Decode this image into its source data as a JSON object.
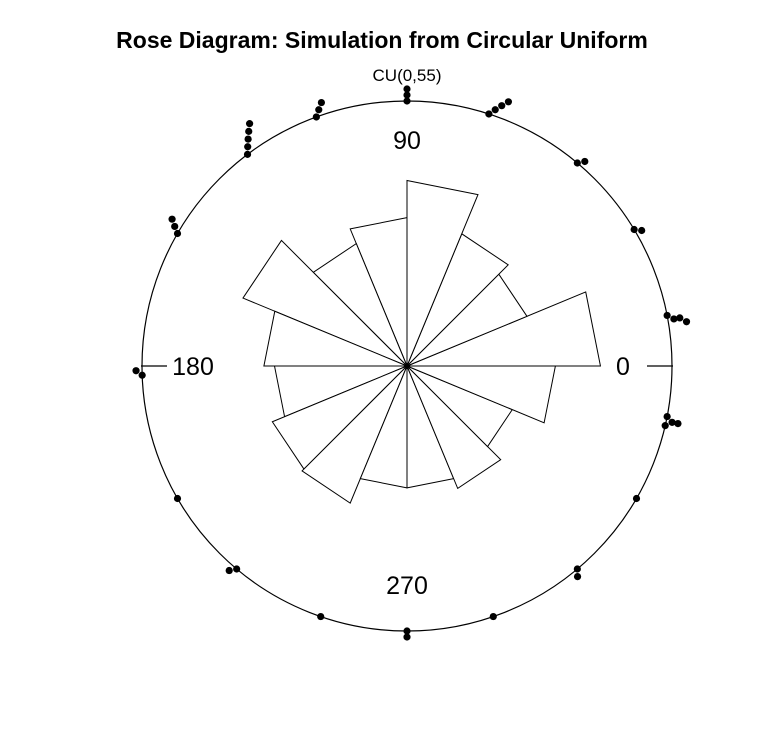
{
  "chart_data": {
    "type": "rose",
    "title": "Rose Diagram: Simulation from Circular Uniform",
    "subtitle": "CU(0,55)",
    "axis_labels": {
      "0": "0",
      "90": "90",
      "180": "180",
      "270": "270"
    },
    "bins_degrees": 22.5,
    "bin_relative_heights": [
      0.73,
      0.49,
      0.54,
      0.7,
      0.56,
      0.5,
      0.67,
      0.54,
      0.5,
      0.55,
      0.56,
      0.46,
      0.46,
      0.5,
      0.43,
      0.56
    ],
    "raw_points_degrees": [
      90,
      90,
      90,
      72,
      71,
      70,
      69,
      50,
      49,
      31,
      30,
      11,
      10,
      10,
      9,
      349,
      348,
      348,
      347,
      330,
      310,
      309,
      289,
      270,
      270,
      251,
      230,
      229,
      210,
      182,
      181,
      150,
      149,
      148,
      127,
      126,
      125,
      124,
      123,
      110,
      109,
      108
    ]
  }
}
